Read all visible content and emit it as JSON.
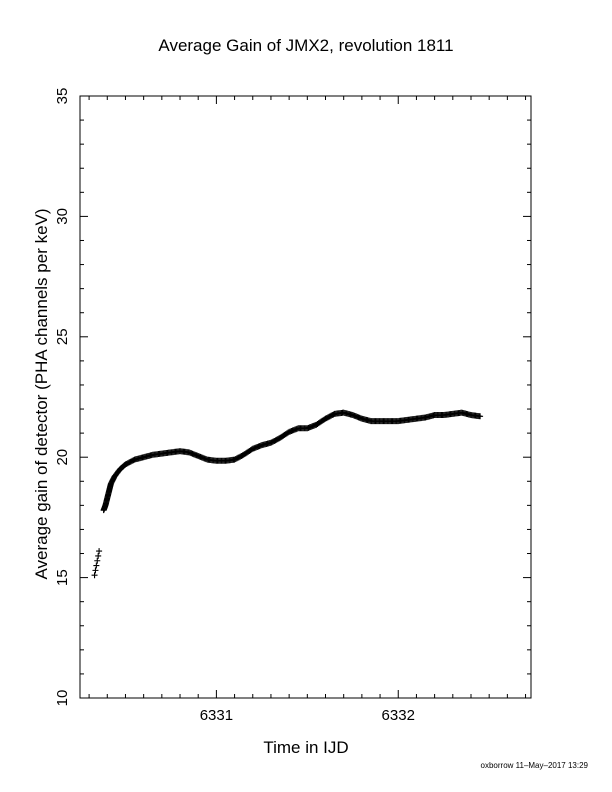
{
  "chart_data": {
    "type": "scatter",
    "title": "Average Gain of JMX2, revolution 1811",
    "xlabel": "Time in IJD",
    "ylabel": "Average gain of detector (PHA channels per keV)",
    "xlim": [
      6330.25,
      6332.73
    ],
    "ylim": [
      10,
      35
    ],
    "xticks": [
      6331,
      6332
    ],
    "yticks": [
      10,
      15,
      20,
      25,
      30,
      35
    ],
    "marker": "plus",
    "grid": false,
    "series": [
      {
        "color": "#000000",
        "points": [
          [
            6330.33,
            15.1
          ],
          [
            6330.335,
            15.3
          ],
          [
            6330.34,
            15.5
          ],
          [
            6330.345,
            15.7
          ],
          [
            6330.35,
            15.9
          ],
          [
            6330.355,
            16.1
          ],
          [
            6330.38,
            17.8
          ],
          [
            6330.39,
            18.0
          ],
          [
            6330.4,
            18.3
          ],
          [
            6330.41,
            18.6
          ],
          [
            6330.42,
            18.9
          ],
          [
            6330.44,
            19.2
          ],
          [
            6330.47,
            19.5
          ],
          [
            6330.5,
            19.7
          ],
          [
            6330.55,
            19.9
          ],
          [
            6330.6,
            20.0
          ],
          [
            6330.65,
            20.1
          ],
          [
            6330.7,
            20.15
          ],
          [
            6330.75,
            20.2
          ],
          [
            6330.8,
            20.25
          ],
          [
            6330.85,
            20.2
          ],
          [
            6330.9,
            20.05
          ],
          [
            6330.95,
            19.9
          ],
          [
            6331.0,
            19.85
          ],
          [
            6331.05,
            19.85
          ],
          [
            6331.1,
            19.9
          ],
          [
            6331.15,
            20.1
          ],
          [
            6331.2,
            20.35
          ],
          [
            6331.25,
            20.5
          ],
          [
            6331.3,
            20.6
          ],
          [
            6331.35,
            20.8
          ],
          [
            6331.4,
            21.05
          ],
          [
            6331.45,
            21.2
          ],
          [
            6331.5,
            21.2
          ],
          [
            6331.55,
            21.35
          ],
          [
            6331.6,
            21.6
          ],
          [
            6331.65,
            21.8
          ],
          [
            6331.7,
            21.85
          ],
          [
            6331.75,
            21.75
          ],
          [
            6331.8,
            21.6
          ],
          [
            6331.85,
            21.5
          ],
          [
            6331.9,
            21.5
          ],
          [
            6331.95,
            21.5
          ],
          [
            6332.0,
            21.5
          ],
          [
            6332.05,
            21.55
          ],
          [
            6332.1,
            21.6
          ],
          [
            6332.15,
            21.65
          ],
          [
            6332.2,
            21.75
          ],
          [
            6332.25,
            21.75
          ],
          [
            6332.3,
            21.8
          ],
          [
            6332.35,
            21.85
          ],
          [
            6332.4,
            21.75
          ],
          [
            6332.45,
            21.7
          ]
        ]
      }
    ]
  },
  "footer": "oxborrow 11–May–2017 13:29"
}
